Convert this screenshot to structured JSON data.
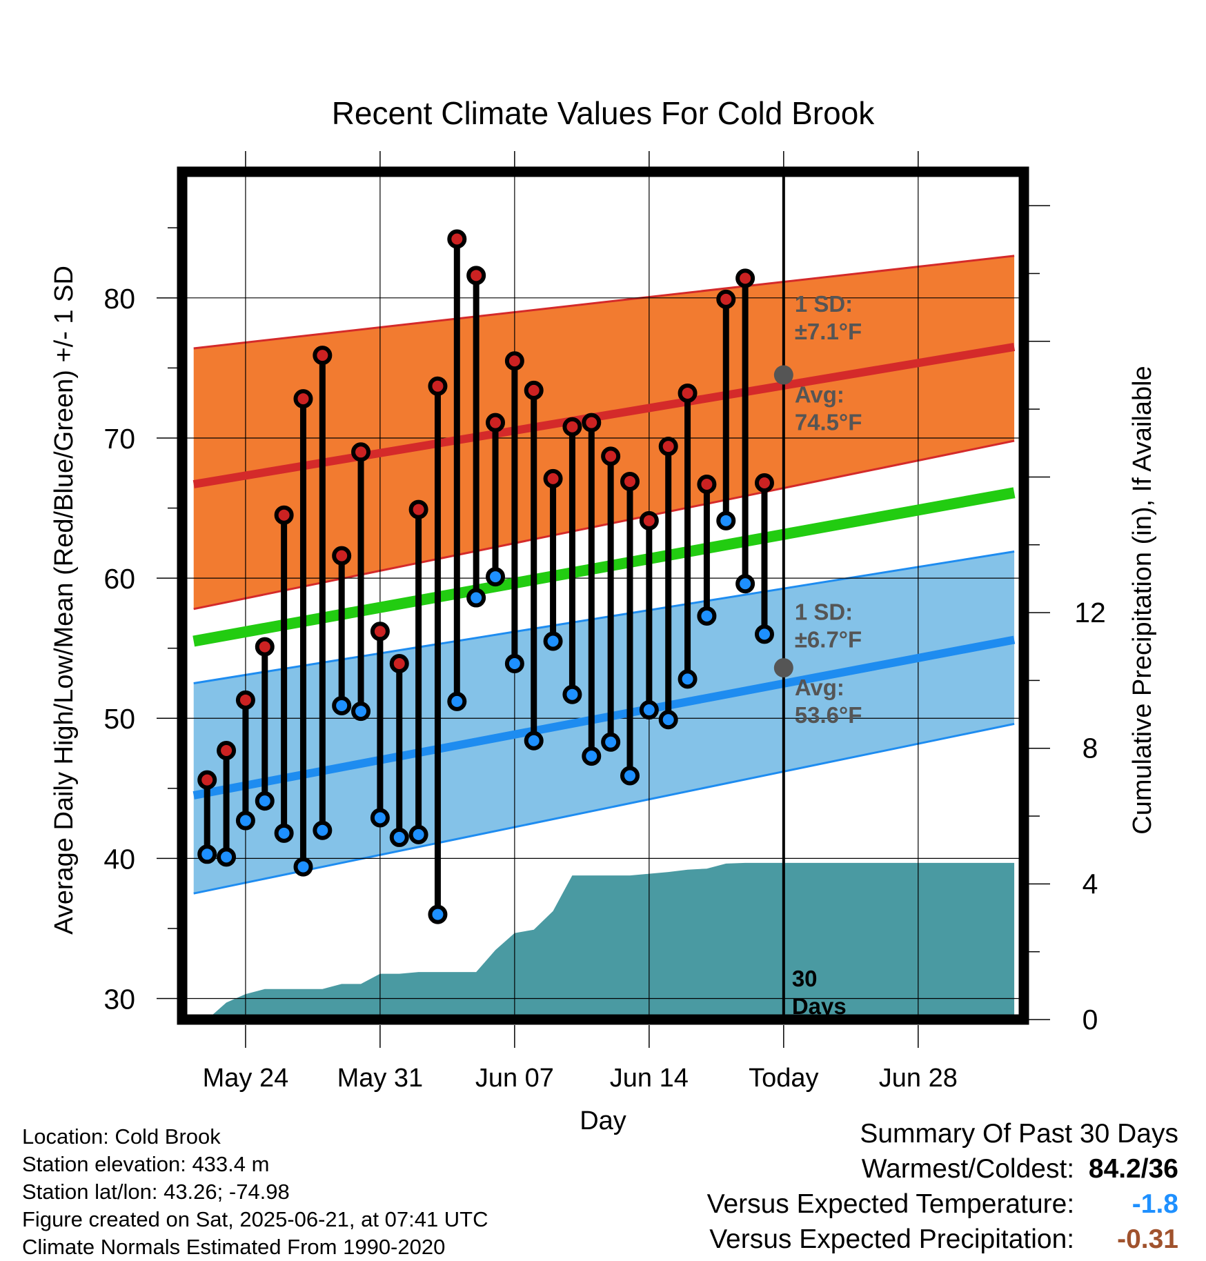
{
  "chart_data": {
    "type": "line",
    "title": "Recent Climate Values For Cold Brook",
    "xlabel": "Day",
    "ylabel": "Average Daily High/Low/Mean (Red/Blue/Green) +/- 1 SD",
    "y2label": "Cumulative Precipitation (in), If Available",
    "ylim": [
      28.5,
      89
    ],
    "y2lim": [
      0,
      25
    ],
    "xlim": [
      -3.3,
      40.5
    ],
    "yticks": [
      "30",
      "40",
      "50",
      "60",
      "70",
      "80"
    ],
    "y2ticks": [
      "0",
      "4",
      "8",
      "12"
    ],
    "xticks": [
      {
        "x": 0,
        "label": "May 24"
      },
      {
        "x": 7,
        "label": "May 31"
      },
      {
        "x": 14,
        "label": "Jun 07"
      },
      {
        "x": 21,
        "label": "Jun 14"
      },
      {
        "x": 28,
        "label": "Today"
      },
      {
        "x": 35,
        "label": "Jun 28"
      }
    ],
    "grid": true,
    "today_x": 28,
    "today_label_line1": "30",
    "today_label_line2": "Days",
    "normals": {
      "x": [
        -2.7,
        40
      ],
      "high_avg": [
        66.7,
        76.5
      ],
      "high_plus_sd": [
        76.4,
        83.0
      ],
      "high_minus_sd": [
        57.8,
        69.8
      ],
      "low_avg": [
        44.5,
        55.6
      ],
      "low_plus_sd": [
        52.5,
        61.9
      ],
      "low_minus_sd": [
        37.5,
        49.6
      ],
      "mean_avg": [
        55.5,
        66.1
      ]
    },
    "high_sd_label_line1": "1 SD:",
    "high_sd_label_line2": "±7.1°F",
    "high_avg_label_line1": "Avg:",
    "high_avg_label_line2": "74.5°F",
    "low_sd_label_line1": "1 SD:",
    "low_sd_label_line2": "±6.7°F",
    "low_avg_label_line1": "Avg:",
    "low_avg_label_line2": "53.6°F",
    "today_high_avg": 74.5,
    "today_low_avg": 53.6,
    "series": [
      {
        "name": "High",
        "color": "#cc2222",
        "x": [
          -2,
          -1,
          0,
          1,
          2,
          3,
          4,
          5,
          6,
          7,
          8,
          9,
          10,
          11,
          12,
          13,
          14,
          15,
          16,
          17,
          18,
          19,
          20,
          21,
          22,
          23,
          24,
          25,
          26,
          27
        ],
        "values": [
          45.6,
          47.7,
          51.3,
          55.1,
          64.5,
          72.8,
          75.9,
          61.6,
          69.0,
          56.2,
          53.9,
          64.9,
          73.7,
          84.2,
          81.6,
          71.1,
          75.5,
          73.4,
          67.1,
          70.8,
          71.1,
          68.7,
          66.9,
          64.1,
          69.4,
          73.2,
          66.7,
          79.9,
          81.4,
          66.8
        ]
      },
      {
        "name": "Low",
        "color": "#1e90ff",
        "x": [
          -2,
          -1,
          0,
          1,
          2,
          3,
          4,
          5,
          6,
          7,
          8,
          9,
          10,
          11,
          12,
          13,
          14,
          15,
          16,
          17,
          18,
          19,
          20,
          21,
          22,
          23,
          24,
          25,
          26,
          27
        ],
        "values": [
          40.3,
          40.1,
          42.7,
          44.1,
          41.8,
          39.4,
          42.0,
          50.9,
          50.5,
          42.9,
          41.5,
          41.7,
          36.0,
          51.2,
          58.6,
          60.1,
          53.9,
          48.4,
          55.5,
          51.7,
          47.3,
          48.3,
          45.9,
          50.6,
          49.9,
          52.8,
          57.3,
          64.1,
          59.6,
          56.0
        ]
      },
      {
        "name": "Cumulative Precipitation",
        "color": "#4a9aa2",
        "x": [
          -2,
          -1,
          0,
          1,
          2,
          3,
          4,
          5,
          6,
          7,
          8,
          9,
          10,
          11,
          12,
          13,
          14,
          15,
          16,
          17,
          18,
          19,
          20,
          21,
          22,
          23,
          24,
          25,
          26,
          27,
          28,
          40
        ],
        "values": [
          0.0,
          0.5,
          0.75,
          0.9,
          0.9,
          0.9,
          0.9,
          1.05,
          1.05,
          1.35,
          1.35,
          1.4,
          1.4,
          1.4,
          1.4,
          2.05,
          2.55,
          2.65,
          3.2,
          4.25,
          4.25,
          4.25,
          4.25,
          4.3,
          4.35,
          4.42,
          4.45,
          4.6,
          4.62,
          4.62,
          4.62,
          4.62
        ]
      }
    ]
  },
  "info": {
    "location": "Location: Cold Brook",
    "elevation": "Station elevation: 433.4 m",
    "latlon": "Station lat/lon: 43.26; -74.98",
    "created": "Figure created on Sat, 2025-06-21, at 07:41 UTC",
    "normals": "Climate Normals Estimated From 1990-2020"
  },
  "summary": {
    "title": "Summary Of Past 30 Days",
    "warmest_coldest_label": "Warmest/Coldest:",
    "warmest_coldest_value": "84.2/36",
    "temp_label": "Versus Expected Temperature:",
    "temp_value": "-1.8",
    "temp_color": "#1e90ff",
    "precip_label": "Versus Expected Precipitation:",
    "precip_value": "-0.31",
    "precip_color": "#a0522d"
  },
  "colors": {
    "high_band": "#f27b30",
    "high_line": "#d42a2a",
    "low_band": "#84c2e8",
    "low_line": "#1e8cf0",
    "mean_line": "#22cc11",
    "precip_fill": "#4a9aa2",
    "label_gray": "#555555",
    "high_marker": "#cc2222",
    "low_marker": "#1e90ff"
  }
}
